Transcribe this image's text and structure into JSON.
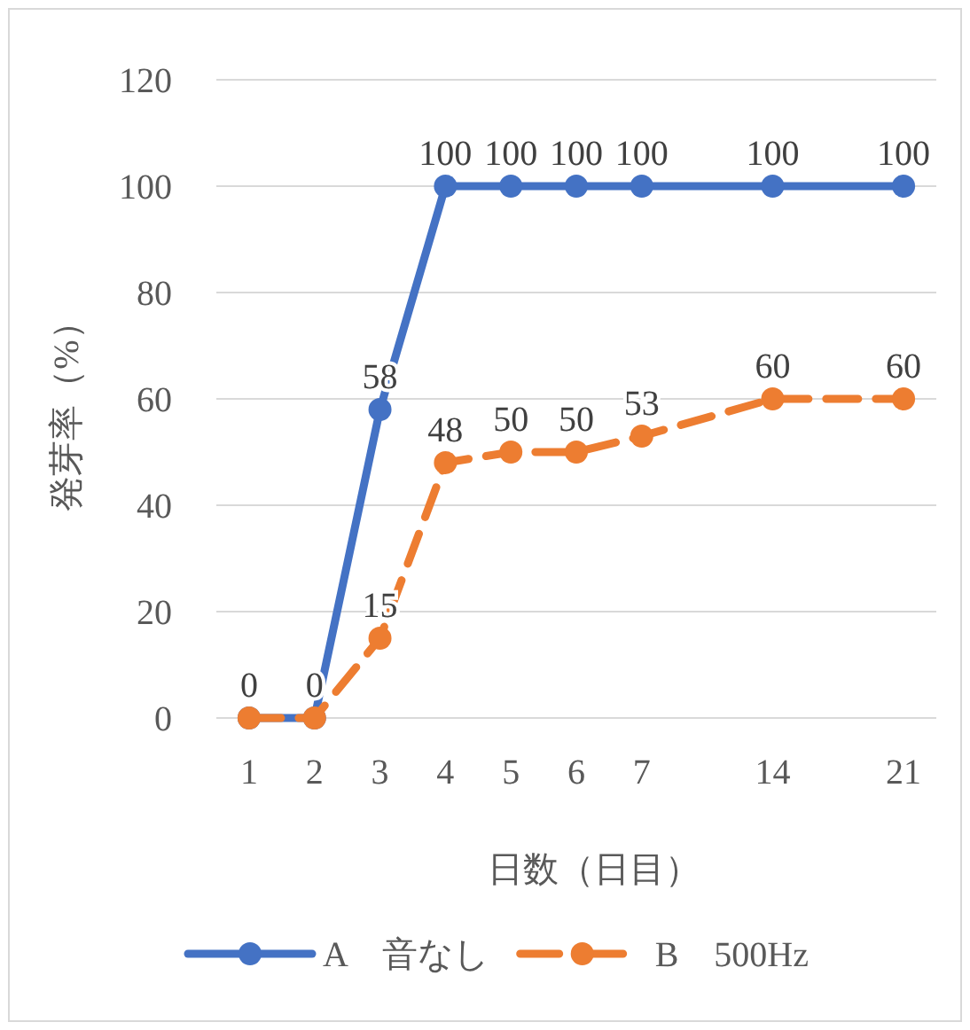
{
  "chart_data": {
    "type": "line",
    "xlabel": "日数（日目）",
    "ylabel": "発芽率（%）",
    "categories": [
      "1",
      "2",
      "3",
      "4",
      "5",
      "6",
      "7",
      null,
      "14",
      null,
      "21"
    ],
    "series": [
      {
        "name": "A　音なし",
        "color": "#4472c4",
        "line_style": "solid",
        "values": [
          0,
          0,
          58,
          100,
          100,
          100,
          100,
          null,
          100,
          null,
          100
        ]
      },
      {
        "name": "B　500Hz",
        "color": "#ed7d31",
        "line_style": "dashed",
        "values": [
          0,
          0,
          15,
          48,
          50,
          50,
          53,
          null,
          60,
          null,
          60
        ],
        "value_labels": [
          null,
          null,
          "15",
          "48",
          "50",
          "50",
          "53",
          null,
          "60",
          null,
          "60"
        ]
      }
    ],
    "ylim": [
      0,
      120
    ],
    "yticks": [
      0,
      20,
      40,
      60,
      80,
      100,
      120
    ],
    "grid": "y",
    "marker": "circle",
    "legend": "bottom",
    "data_labels": true
  }
}
